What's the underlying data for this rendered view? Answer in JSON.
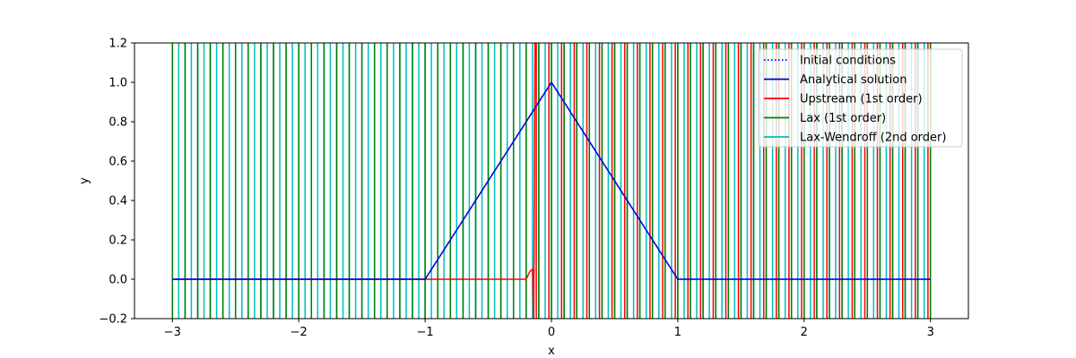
{
  "chart_data": {
    "type": "line",
    "title": "",
    "xlabel": "x",
    "ylabel": "y",
    "xlim": [
      -3.3,
      3.3
    ],
    "ylim": [
      -0.2,
      1.2
    ],
    "xticks": [
      -3,
      -2,
      -1,
      0,
      1,
      2,
      3
    ],
    "xtick_labels": [
      "−3",
      "−2",
      "−1",
      "0",
      "1",
      "2",
      "3"
    ],
    "yticks": [
      -0.2,
      0.0,
      0.2,
      0.4,
      0.6,
      0.8,
      1.0,
      1.2
    ],
    "ytick_labels": [
      "−0.2",
      "0.0",
      "0.2",
      "0.4",
      "0.6",
      "0.8",
      "1.0",
      "1.2"
    ],
    "grid": false,
    "legend_position": "top-right",
    "series": [
      {
        "name": "Initial conditions",
        "color": "#0000ff",
        "style": "dotted",
        "kind": "line",
        "x": [
          -3,
          -1,
          0,
          1,
          3
        ],
        "y": [
          0,
          0,
          1,
          0,
          0
        ]
      },
      {
        "name": "Analytical solution",
        "color": "#0000cc",
        "style": "solid",
        "kind": "line",
        "x": [
          -3,
          -1,
          0,
          1,
          3
        ],
        "y": [
          0,
          0,
          1,
          0,
          0
        ]
      },
      {
        "name": "Upstream (1st order)",
        "color": "#ff0000",
        "style": "solid",
        "kind": "oscillating",
        "x": [
          -3,
          -0.2,
          -0.17,
          -0.15,
          -0.14,
          -0.13
        ],
        "y": [
          0,
          0,
          0.04,
          0.05,
          -0.2,
          1.2
        ],
        "osc_x_range": [
          -0.12,
          3.0
        ],
        "osc_step": 0.1
      },
      {
        "name": "Lax (1st order)",
        "color": "#008000",
        "style": "solid",
        "kind": "oscillating",
        "osc_x_range": [
          -3.0,
          3.0
        ],
        "osc_step": 0.1
      },
      {
        "name": "Lax-Wendroff (2nd order)",
        "color": "#00bfbf",
        "style": "solid",
        "kind": "oscillating",
        "osc_x_range": [
          -3.0,
          3.0
        ],
        "osc_step": 0.05
      }
    ]
  }
}
